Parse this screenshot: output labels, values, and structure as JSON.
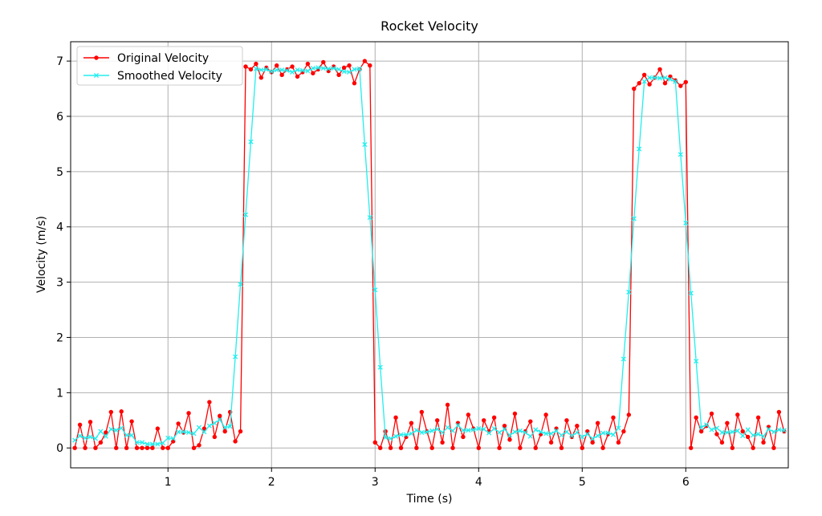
{
  "chart_data": {
    "type": "line",
    "title": "Rocket Velocity",
    "x_label": "Time (s)",
    "y_label": "Velocity (m/s)",
    "x": [
      0.1,
      0.15,
      0.2,
      0.25,
      0.3,
      0.35,
      0.4,
      0.45,
      0.5,
      0.55,
      0.6,
      0.65,
      0.7,
      0.75,
      0.8,
      0.85,
      0.9,
      0.95,
      1,
      1.05,
      1.1,
      1.15,
      1.2,
      1.25,
      1.3,
      1.35,
      1.4,
      1.45,
      1.5,
      1.55,
      1.6,
      1.65,
      1.7,
      1.75,
      1.8,
      1.85,
      1.9,
      1.95,
      2,
      2.05,
      2.1,
      2.15,
      2.2,
      2.25,
      2.3,
      2.35,
      2.4,
      2.45,
      2.5,
      2.55,
      2.6,
      2.65,
      2.7,
      2.75,
      2.8,
      2.85,
      2.9,
      2.95,
      3,
      3.05,
      3.1,
      3.15,
      3.2,
      3.25,
      3.3,
      3.35,
      3.4,
      3.45,
      3.5,
      3.55,
      3.6,
      3.65,
      3.7,
      3.75,
      3.8,
      3.85,
      3.9,
      3.95,
      4,
      4.05,
      4.1,
      4.15,
      4.2,
      4.25,
      4.3,
      4.35,
      4.4,
      4.45,
      4.5,
      4.55,
      4.6,
      4.65,
      4.7,
      4.75,
      4.8,
      4.85,
      4.9,
      4.95,
      5,
      5.05,
      5.1,
      5.15,
      5.2,
      5.25,
      5.3,
      5.35,
      5.4,
      5.45,
      5.5,
      5.55,
      5.6,
      5.65,
      5.7,
      5.75,
      5.8,
      5.85,
      5.9,
      5.95,
      6,
      6.05,
      6.1,
      6.15,
      6.2,
      6.25,
      6.3,
      6.35,
      6.4,
      6.45,
      6.5,
      6.55,
      6.6,
      6.65,
      6.7,
      6.75,
      6.8,
      6.85,
      6.9,
      6.95
    ],
    "series": [
      {
        "name": "Original Velocity",
        "color": "#ff0000",
        "marker": "o",
        "values": [
          0,
          0.42,
          0,
          0.47,
          0,
          0.1,
          0.28,
          0.65,
          0,
          0.66,
          0,
          0.48,
          0,
          0,
          0,
          0,
          0.35,
          0,
          0,
          0.12,
          0.44,
          0.28,
          0.63,
          0,
          0.05,
          0.35,
          0.83,
          0.2,
          0.58,
          0.3,
          0.65,
          0.12,
          0.3,
          6.9,
          6.85,
          6.95,
          6.7,
          6.88,
          6.8,
          6.92,
          6.75,
          6.85,
          6.9,
          6.72,
          6.8,
          6.95,
          6.78,
          6.85,
          6.98,
          6.82,
          6.9,
          6.75,
          6.88,
          6.92,
          6.6,
          6.85,
          7.0,
          6.92,
          0.1,
          0,
          0.3,
          0,
          0.55,
          0,
          0.2,
          0.45,
          0,
          0.65,
          0.3,
          0,
          0.5,
          0.1,
          0.78,
          0,
          0.45,
          0.2,
          0.6,
          0.35,
          0,
          0.5,
          0.3,
          0.55,
          0,
          0.4,
          0.15,
          0.62,
          0,
          0.3,
          0.48,
          0,
          0.25,
          0.6,
          0.1,
          0.35,
          0,
          0.5,
          0.2,
          0.4,
          0,
          0.3,
          0.1,
          0.45,
          0,
          0.25,
          0.55,
          0.1,
          0.3,
          0.6,
          6.5,
          6.6,
          6.75,
          6.58,
          6.7,
          6.85,
          6.6,
          6.72,
          6.65,
          6.55,
          6.62,
          0,
          0.55,
          0.3,
          0.4,
          0.62,
          0.25,
          0.1,
          0.45,
          0,
          0.6,
          0.3,
          0.2,
          0,
          0.55,
          0.1,
          0.38,
          0,
          0.65,
          0.3
        ]
      },
      {
        "name": "Smoothed Velocity",
        "color": "#22eeee",
        "marker": "x",
        "values": [
          0.14,
          0.22,
          0.18,
          0.2,
          0.17,
          0.3,
          0.21,
          0.34,
          0.32,
          0.36,
          0.23,
          0.23,
          0.1,
          0.1,
          0.07,
          0.07,
          0.07,
          0.09,
          0.18,
          0.17,
          0.29,
          0.29,
          0.28,
          0.26,
          0.37,
          0.29,
          0.4,
          0.45,
          0.51,
          0.37,
          0.39,
          1.65,
          2.96,
          4.22,
          5.54,
          6.86,
          6.84,
          6.85,
          6.81,
          6.84,
          6.84,
          6.83,
          6.8,
          6.84,
          6.83,
          6.82,
          6.87,
          6.88,
          6.87,
          6.86,
          6.87,
          6.85,
          6.81,
          6.8,
          6.85,
          6.86,
          5.49,
          4.17,
          2.86,
          1.46,
          0.19,
          0.17,
          0.21,
          0.24,
          0.24,
          0.26,
          0.32,
          0.28,
          0.29,
          0.31,
          0.34,
          0.28,
          0.37,
          0.31,
          0.41,
          0.32,
          0.32,
          0.33,
          0.35,
          0.34,
          0.27,
          0.35,
          0.28,
          0.34,
          0.23,
          0.29,
          0.31,
          0.28,
          0.21,
          0.33,
          0.29,
          0.26,
          0.26,
          0.31,
          0.23,
          0.29,
          0.22,
          0.28,
          0.2,
          0.25,
          0.17,
          0.22,
          0.27,
          0.27,
          0.24,
          0.36,
          1.61,
          2.82,
          4.15,
          5.41,
          6.63,
          6.7,
          6.7,
          6.69,
          6.7,
          6.67,
          6.63,
          5.31,
          4.07,
          2.8,
          1.57,
          0.37,
          0.42,
          0.33,
          0.36,
          0.28,
          0.28,
          0.29,
          0.31,
          0.22,
          0.33,
          0.23,
          0.25,
          0.21,
          0.34,
          0.29,
          0.33,
          0.32
        ]
      }
    ],
    "xlim": [
      0.06,
      6.99
    ],
    "ylim": [
      -0.36,
      7.35
    ],
    "xticks": [
      1,
      2,
      3,
      4,
      5,
      6
    ],
    "yticks": [
      0,
      1,
      2,
      3,
      4,
      5,
      6,
      7
    ],
    "grid": true,
    "legend": "upper left"
  }
}
